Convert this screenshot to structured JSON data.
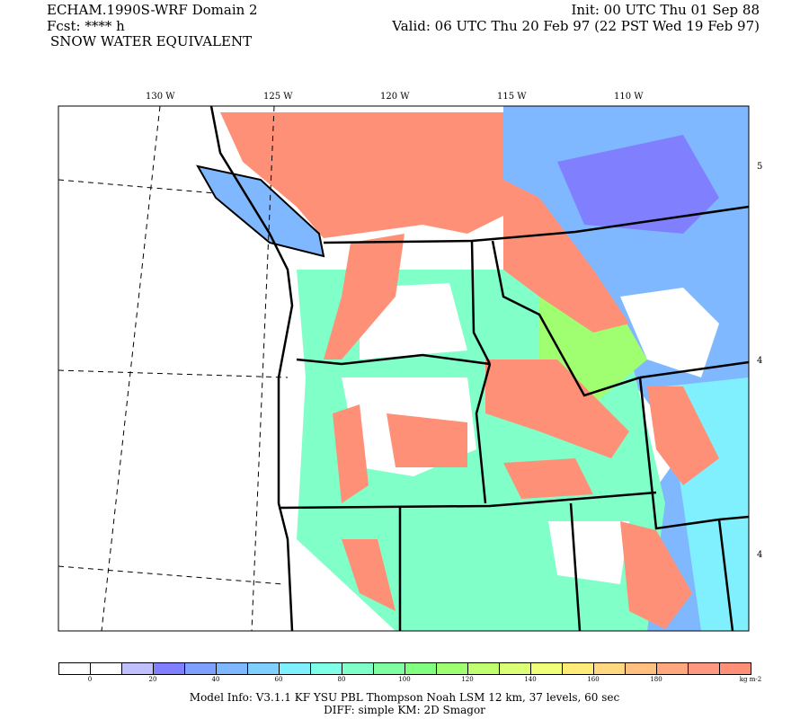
{
  "header": {
    "model_title": "ECHAM.1990S-WRF Domain 2",
    "fcst": "Fcst: **** h",
    "field": "SNOW WATER EQUIVALENT",
    "init": "Init: 00 UTC Thu 01 Sep 88",
    "valid": "Valid: 06 UTC Thu 20 Feb 97 (22 PST Wed 19 Feb 97)"
  },
  "map": {
    "lon_labels": [
      "130 W",
      "125 W",
      "120 W",
      "115 W",
      "110 W"
    ],
    "lat_labels": [
      "5",
      "4",
      "4"
    ]
  },
  "colorbar": {
    "colors": [
      "#ffffff",
      "#ffffff",
      "#c0c0ff",
      "#8080ff",
      "#80a0ff",
      "#80b8ff",
      "#80d0ff",
      "#80f0ff",
      "#80ffe8",
      "#80ffc8",
      "#80ffa0",
      "#80ff80",
      "#a0ff70",
      "#c0ff70",
      "#dcff78",
      "#f0ff78",
      "#ffec78",
      "#ffd880",
      "#ffc080",
      "#ffa880",
      "#ff9880",
      "#ff9078"
    ],
    "labels": [
      "0",
      "20",
      "40",
      "60",
      "80",
      "100",
      "120",
      "140",
      "160",
      "180"
    ],
    "units": "kg m-2"
  },
  "footer": {
    "line1": "Model Info: V3.1.1    KF       YSU PBL   Thompson     Noah LSM   12 km,     37 levels,    60 sec",
    "line2": "DIFF: simple KM: 2D Smagor"
  }
}
